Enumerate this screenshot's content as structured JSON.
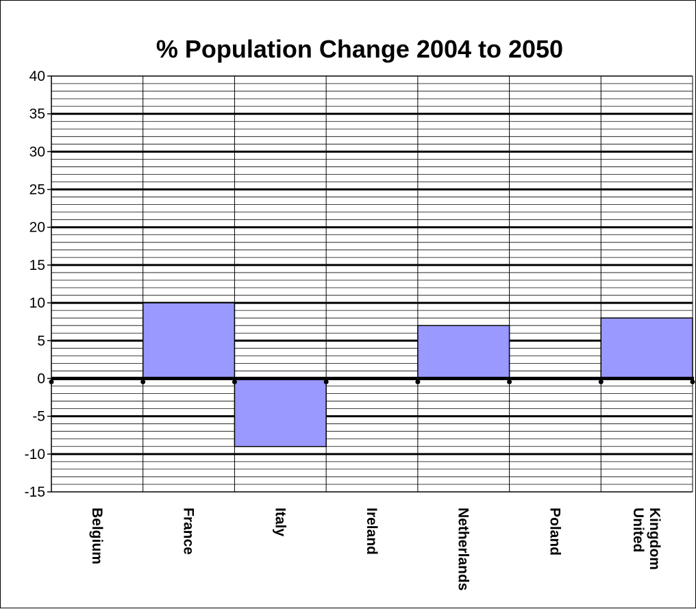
{
  "chart_data": {
    "type": "bar",
    "title": "% Population Change 2004 to 2050",
    "xlabel": "",
    "ylabel": "",
    "categories": [
      [
        "Belgium"
      ],
      [
        "France"
      ],
      [
        "Italy"
      ],
      [
        "Ireland"
      ],
      [
        "Netherlands"
      ],
      [
        "Poland"
      ],
      [
        "United",
        "Kingdom"
      ]
    ],
    "values": [
      0,
      10,
      -9,
      0,
      7,
      0,
      8
    ],
    "ylim": [
      -15,
      40
    ],
    "y_ticks": [
      40,
      35,
      30,
      25,
      20,
      15,
      10,
      5,
      0,
      -5,
      -10,
      -15
    ],
    "grid": true,
    "legend": "none",
    "colors": {
      "bar_fill": "#9999ff",
      "bar_stroke": "#000000",
      "grid_major": "#000000",
      "grid_minor": "#000000",
      "background": "#ffffff"
    }
  }
}
